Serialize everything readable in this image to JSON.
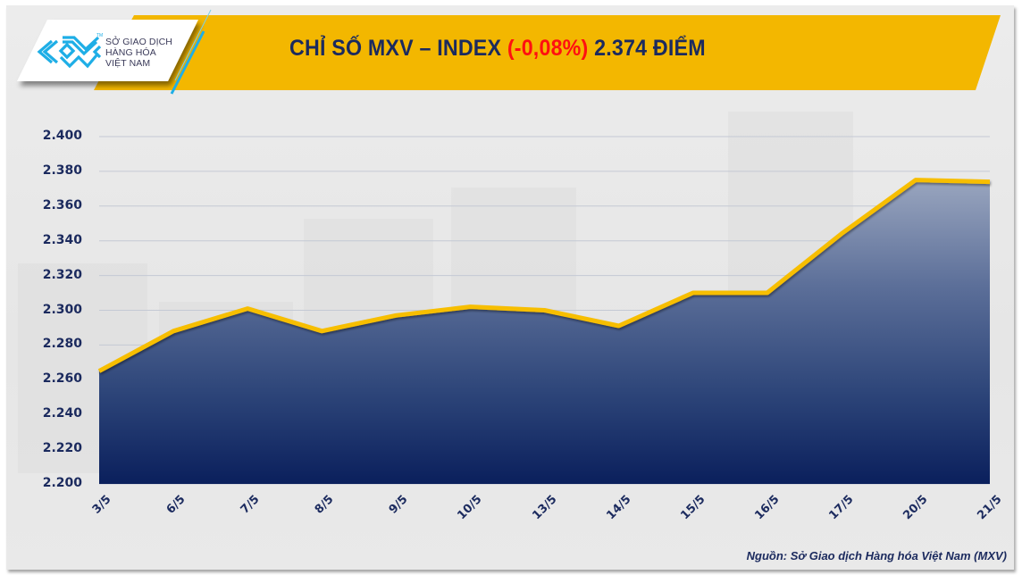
{
  "header": {
    "logo": {
      "icon": "mxv-logo-icon",
      "trademark": "TM",
      "lines": [
        "SỞ GIAO DỊCH",
        "HÀNG HÓA",
        "VIỆT NAM"
      ]
    },
    "title_prefix": "CHỈ SỐ MXV – INDEX ",
    "title_change": "(-0,08%)",
    "title_suffix": " 2.374 ĐIỂM",
    "colors": {
      "banner": "#f3b700",
      "title": "#1b2a5e",
      "change": "#ff1010",
      "logo_blue": "#1eaee6"
    }
  },
  "chart_data": {
    "type": "area",
    "title": "CHỈ SỐ MXV – INDEX (-0,08%) 2.374 ĐIỂM",
    "xlabel": "",
    "ylabel": "",
    "categories": [
      "3/5",
      "6/5",
      "7/5",
      "8/5",
      "9/5",
      "10/5",
      "13/5",
      "14/5",
      "15/5",
      "16/5",
      "17/5",
      "20/5",
      "21/5"
    ],
    "values": [
      2265,
      2288,
      2301,
      2288,
      2297,
      2302,
      2300,
      2291,
      2310,
      2310,
      2344,
      2375,
      2374
    ],
    "ylim": [
      2200,
      2400
    ],
    "yticks": [
      "2.200",
      "2.220",
      "2.240",
      "2.260",
      "2.280",
      "2.300",
      "2.320",
      "2.340",
      "2.360",
      "2.380",
      "2.400"
    ],
    "grid": true,
    "legend": null,
    "colors": {
      "line": "#f7be00",
      "fill_top": "#9aa6bf",
      "fill_bottom": "#0a1f5c",
      "grid": "#c4c9d4"
    }
  },
  "footer": {
    "source": "Nguồn: Sở Giao dịch Hàng hóa Việt Nam (MXV)"
  }
}
